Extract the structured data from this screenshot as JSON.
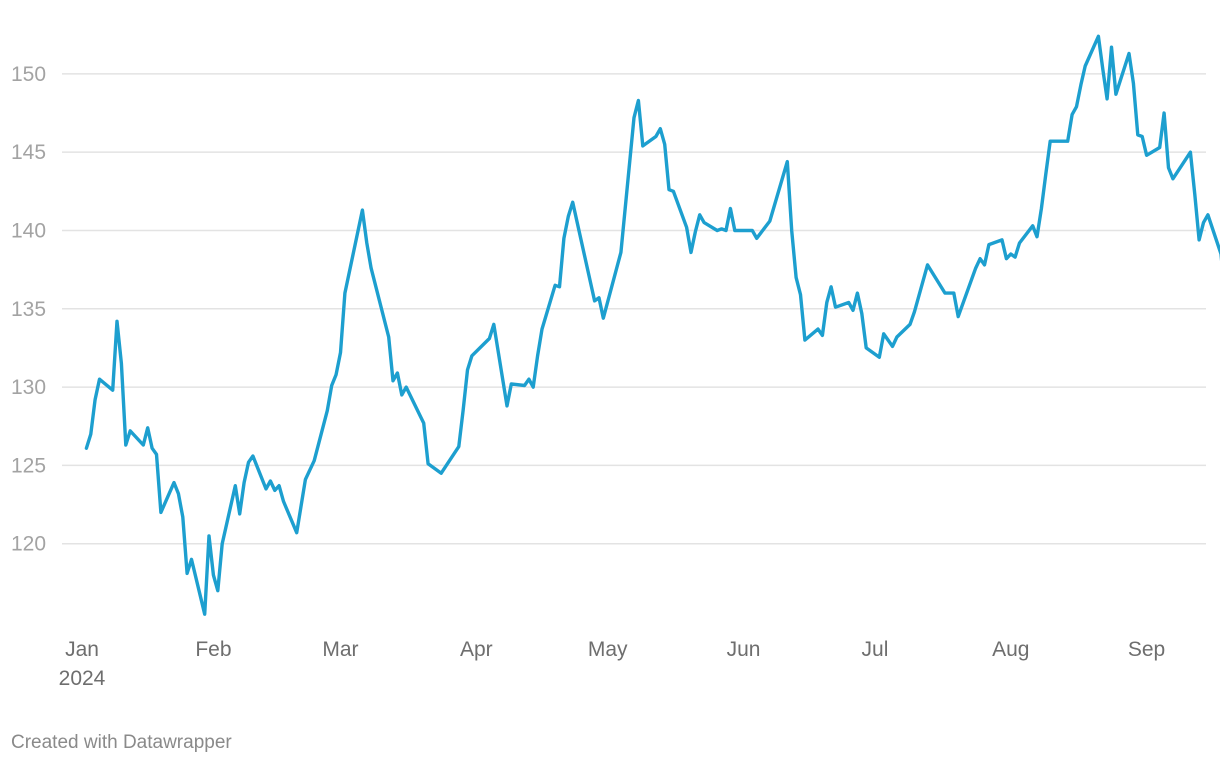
{
  "chart_data": {
    "type": "line",
    "x_unit": "date",
    "y_ticks": [
      120,
      125,
      130,
      135,
      140,
      145,
      150
    ],
    "ylim": [
      115,
      152.8
    ],
    "x_ticks": [
      {
        "date": "2024-01-02",
        "label": "Jan",
        "sublabel": "2024"
      },
      {
        "date": "2024-02-01",
        "label": "Feb"
      },
      {
        "date": "2024-03-01",
        "label": "Mar"
      },
      {
        "date": "2024-04-01",
        "label": "Apr"
      },
      {
        "date": "2024-05-01",
        "label": "May"
      },
      {
        "date": "2024-06-01",
        "label": "Jun"
      },
      {
        "date": "2024-07-01",
        "label": "Jul"
      },
      {
        "date": "2024-08-01",
        "label": "Aug"
      },
      {
        "date": "2024-09-01",
        "label": "Sep"
      }
    ],
    "xlim": [
      "2024-01-02",
      "2024-09-10"
    ],
    "grid": true,
    "line_color": "#1d9fcf",
    "series": [
      {
        "points": [
          [
            "2024-01-03",
            126.1
          ],
          [
            "2024-01-04",
            127.0
          ],
          [
            "2024-01-05",
            129.2
          ],
          [
            "2024-01-06",
            130.5
          ],
          [
            "2024-01-09",
            129.8
          ],
          [
            "2024-01-10",
            134.2
          ],
          [
            "2024-01-11",
            131.5
          ],
          [
            "2024-01-12",
            126.3
          ],
          [
            "2024-01-13",
            127.2
          ],
          [
            "2024-01-16",
            126.3
          ],
          [
            "2024-01-17",
            127.4
          ],
          [
            "2024-01-18",
            126.1
          ],
          [
            "2024-01-19",
            125.7
          ],
          [
            "2024-01-20",
            122.0
          ],
          [
            "2024-01-23",
            123.9
          ],
          [
            "2024-01-24",
            123.2
          ],
          [
            "2024-01-25",
            121.7
          ],
          [
            "2024-01-26",
            118.1
          ],
          [
            "2024-01-27",
            119.0
          ],
          [
            "2024-01-30",
            115.5
          ],
          [
            "2024-01-31",
            120.5
          ],
          [
            "2024-02-01",
            118.0
          ],
          [
            "2024-02-02",
            117.0
          ],
          [
            "2024-02-03",
            120.0
          ],
          [
            "2024-02-06",
            123.7
          ],
          [
            "2024-02-07",
            121.9
          ],
          [
            "2024-02-08",
            123.9
          ],
          [
            "2024-02-09",
            125.2
          ],
          [
            "2024-02-10",
            125.6
          ],
          [
            "2024-02-13",
            123.5
          ],
          [
            "2024-02-14",
            124.0
          ],
          [
            "2024-02-15",
            123.4
          ],
          [
            "2024-02-16",
            123.7
          ],
          [
            "2024-02-17",
            122.7
          ],
          [
            "2024-02-20",
            120.7
          ],
          [
            "2024-02-22",
            124.1
          ],
          [
            "2024-02-24",
            125.3
          ],
          [
            "2024-02-27",
            128.5
          ],
          [
            "2024-02-28",
            130.1
          ],
          [
            "2024-02-29",
            130.8
          ],
          [
            "2024-03-01",
            132.2
          ],
          [
            "2024-03-02",
            136.0
          ],
          [
            "2024-03-06",
            141.3
          ],
          [
            "2024-03-07",
            139.2
          ],
          [
            "2024-03-08",
            137.6
          ],
          [
            "2024-03-12",
            133.2
          ],
          [
            "2024-03-13",
            130.4
          ],
          [
            "2024-03-14",
            130.9
          ],
          [
            "2024-03-15",
            129.5
          ],
          [
            "2024-03-16",
            130.0
          ],
          [
            "2024-03-20",
            127.7
          ],
          [
            "2024-03-21",
            125.1
          ],
          [
            "2024-03-24",
            124.5
          ],
          [
            "2024-03-28",
            126.2
          ],
          [
            "2024-03-29",
            128.5
          ],
          [
            "2024-03-30",
            131.1
          ],
          [
            "2024-03-31",
            132.0
          ],
          [
            "2024-04-04",
            133.1
          ],
          [
            "2024-04-05",
            134.0
          ],
          [
            "2024-04-08",
            128.8
          ],
          [
            "2024-04-09",
            130.2
          ],
          [
            "2024-04-12",
            130.1
          ],
          [
            "2024-04-13",
            130.5
          ],
          [
            "2024-04-14",
            130.0
          ],
          [
            "2024-04-15",
            132.0
          ],
          [
            "2024-04-16",
            133.7
          ],
          [
            "2024-04-19",
            136.5
          ],
          [
            "2024-04-20",
            136.4
          ],
          [
            "2024-04-21",
            139.5
          ],
          [
            "2024-04-22",
            140.9
          ],
          [
            "2024-04-23",
            141.8
          ],
          [
            "2024-04-28",
            135.5
          ],
          [
            "2024-04-29",
            135.7
          ],
          [
            "2024-04-30",
            134.4
          ],
          [
            "2024-05-04",
            138.6
          ],
          [
            "2024-05-07",
            147.2
          ],
          [
            "2024-05-08",
            148.3
          ],
          [
            "2024-05-09",
            145.4
          ],
          [
            "2024-05-12",
            146.0
          ],
          [
            "2024-05-13",
            146.5
          ],
          [
            "2024-05-14",
            145.5
          ],
          [
            "2024-05-15",
            142.6
          ],
          [
            "2024-05-16",
            142.5
          ],
          [
            "2024-05-19",
            140.2
          ],
          [
            "2024-05-20",
            138.6
          ],
          [
            "2024-05-21",
            139.9
          ],
          [
            "2024-05-22",
            141.0
          ],
          [
            "2024-05-23",
            140.5
          ],
          [
            "2024-05-26",
            140.0
          ],
          [
            "2024-05-27",
            140.1
          ],
          [
            "2024-05-28",
            140.0
          ],
          [
            "2024-05-29",
            141.4
          ],
          [
            "2024-05-30",
            140.0
          ],
          [
            "2024-06-03",
            140.0
          ],
          [
            "2024-06-04",
            139.5
          ],
          [
            "2024-06-07",
            140.6
          ],
          [
            "2024-06-11",
            144.4
          ],
          [
            "2024-06-12",
            140.0
          ],
          [
            "2024-06-13",
            137.0
          ],
          [
            "2024-06-14",
            135.9
          ],
          [
            "2024-06-15",
            133.0
          ],
          [
            "2024-06-18",
            133.7
          ],
          [
            "2024-06-19",
            133.3
          ],
          [
            "2024-06-20",
            135.4
          ],
          [
            "2024-06-21",
            136.4
          ],
          [
            "2024-06-22",
            135.1
          ],
          [
            "2024-06-25",
            135.4
          ],
          [
            "2024-06-26",
            134.9
          ],
          [
            "2024-06-27",
            136.0
          ],
          [
            "2024-06-28",
            134.7
          ],
          [
            "2024-06-29",
            132.5
          ],
          [
            "2024-07-02",
            131.9
          ],
          [
            "2024-07-03",
            133.4
          ],
          [
            "2024-07-04",
            133.0
          ],
          [
            "2024-07-05",
            132.6
          ],
          [
            "2024-07-06",
            133.2
          ],
          [
            "2024-07-09",
            134.0
          ],
          [
            "2024-07-10",
            134.8
          ],
          [
            "2024-07-13",
            137.8
          ],
          [
            "2024-07-17",
            136.0
          ],
          [
            "2024-07-19",
            136.0
          ],
          [
            "2024-07-20",
            134.5
          ],
          [
            "2024-07-24",
            137.6
          ],
          [
            "2024-07-25",
            138.2
          ],
          [
            "2024-07-26",
            137.8
          ],
          [
            "2024-07-27",
            139.1
          ],
          [
            "2024-07-30",
            139.4
          ],
          [
            "2024-07-31",
            138.2
          ],
          [
            "2024-08-01",
            138.5
          ],
          [
            "2024-08-02",
            138.3
          ],
          [
            "2024-08-03",
            139.2
          ],
          [
            "2024-08-06",
            140.3
          ],
          [
            "2024-08-07",
            139.6
          ],
          [
            "2024-08-08",
            141.4
          ],
          [
            "2024-08-09",
            143.6
          ],
          [
            "2024-08-10",
            145.7
          ],
          [
            "2024-08-14",
            145.7
          ],
          [
            "2024-08-15",
            147.4
          ],
          [
            "2024-08-16",
            147.9
          ],
          [
            "2024-08-17",
            149.3
          ],
          [
            "2024-08-18",
            150.5
          ],
          [
            "2024-08-21",
            152.4
          ],
          [
            "2024-08-22",
            150.3
          ],
          [
            "2024-08-23",
            148.4
          ],
          [
            "2024-08-24",
            151.7
          ],
          [
            "2024-08-25",
            148.7
          ],
          [
            "2024-08-28",
            151.3
          ],
          [
            "2024-08-29",
            149.4
          ],
          [
            "2024-08-30",
            146.1
          ],
          [
            "2024-08-31",
            146.0
          ],
          [
            "2024-09-01",
            144.8
          ],
          [
            "2024-09-04",
            145.3
          ],
          [
            "2024-09-05",
            147.5
          ],
          [
            "2024-09-06",
            144.0
          ],
          [
            "2024-09-07",
            143.3
          ],
          [
            "2024-09-11",
            145.0
          ],
          [
            "2024-09-12",
            142.3
          ],
          [
            "2024-09-13",
            139.4
          ],
          [
            "2024-09-14",
            140.5
          ],
          [
            "2024-09-15",
            141.0
          ],
          [
            "2024-09-18",
            138.5
          ],
          [
            "2024-09-19",
            135.6
          ]
        ]
      }
    ]
  },
  "footer": {
    "credit": "Created with Datawrapper"
  }
}
